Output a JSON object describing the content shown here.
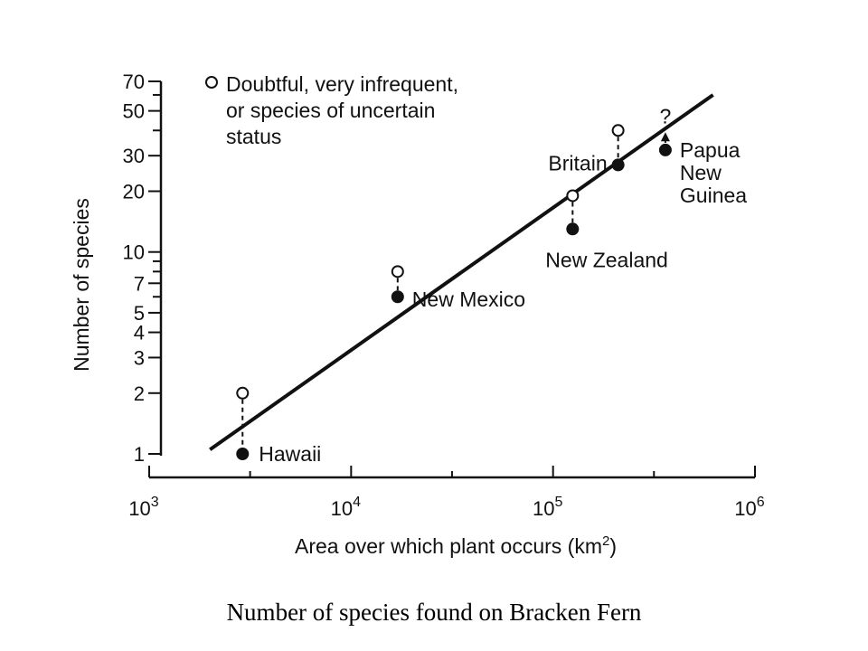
{
  "caption": "Number of species found on Bracken Fern",
  "chart_data": {
    "type": "scatter",
    "xscale": "log",
    "yscale": "log",
    "xlabel": "Area over which plant occurs (km²)",
    "ylabel": "Number of species",
    "xlim": [
      1000,
      1000000
    ],
    "ylim": [
      1,
      70
    ],
    "x_ticks": [
      {
        "value": 1000,
        "base": "10",
        "exp": "3"
      },
      {
        "value": 10000,
        "base": "10",
        "exp": "4"
      },
      {
        "value": 100000,
        "base": "10",
        "exp": "5"
      },
      {
        "value": 1000000,
        "base": "10",
        "exp": "6"
      }
    ],
    "y_ticks": [
      1,
      2,
      3,
      4,
      5,
      7,
      10,
      20,
      30,
      50,
      70
    ],
    "y_minor_ticks": [
      6,
      8,
      9,
      40,
      60
    ],
    "legend": {
      "symbol": "open-circle",
      "lines": [
        "Doubtful, very infrequent,",
        "or species of uncertain",
        "status"
      ],
      "position": "top-left"
    },
    "series": [
      {
        "name": "",
        "marker": "filled-circle",
        "points": [
          {
            "label": "Hawaii",
            "x": 2900,
            "y": 1
          },
          {
            "label": "New Mexico",
            "x": 17000,
            "y": 6
          },
          {
            "label": "New Zealand",
            "x": 125000,
            "y": 13
          },
          {
            "label": "Britain",
            "x": 210000,
            "y": 27
          },
          {
            "label_lines": [
              "Papua",
              "New",
              "Guinea"
            ],
            "x": 360000,
            "y": 32
          }
        ]
      },
      {
        "name": "Doubtful, very infrequent, or species of uncertain status",
        "marker": "open-circle",
        "points": [
          {
            "x": 2900,
            "y": 2
          },
          {
            "x": 17000,
            "y": 8
          },
          {
            "x": 125000,
            "y": 19
          },
          {
            "x": 210000,
            "y": 40
          }
        ]
      }
    ],
    "uncertain_marker": {
      "x": 360000,
      "y_from": 32,
      "y_to": 40,
      "label": "?"
    },
    "trend_line": {
      "x_start": 2000,
      "y_start": 1.05,
      "x_end": 620000,
      "y_end": 60
    }
  }
}
